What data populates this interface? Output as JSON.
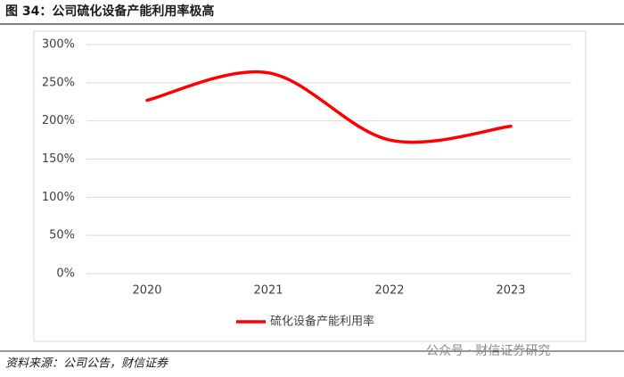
{
  "chart_data": {
    "type": "line",
    "title": "图 34：公司硫化设备产能利用率极高",
    "categories": [
      "2020",
      "2021",
      "2022",
      "2023"
    ],
    "series": [
      {
        "name": "硫化设备产能利用率",
        "color": "#ff0000",
        "values": [
          227,
          263,
          175,
          193
        ]
      }
    ],
    "ylim": [
      0,
      300
    ],
    "yticks": [
      {
        "value": 0,
        "label": "0%"
      },
      {
        "value": 50,
        "label": "50%"
      },
      {
        "value": 100,
        "label": "100%"
      },
      {
        "value": 150,
        "label": "150%"
      },
      {
        "value": 200,
        "label": "200%"
      },
      {
        "value": 250,
        "label": "250%"
      },
      {
        "value": 300,
        "label": "300%"
      }
    ],
    "grid": true,
    "source": "资料来源：公司公告，财信证券",
    "watermark": "公众号 · 财信证券研究"
  }
}
